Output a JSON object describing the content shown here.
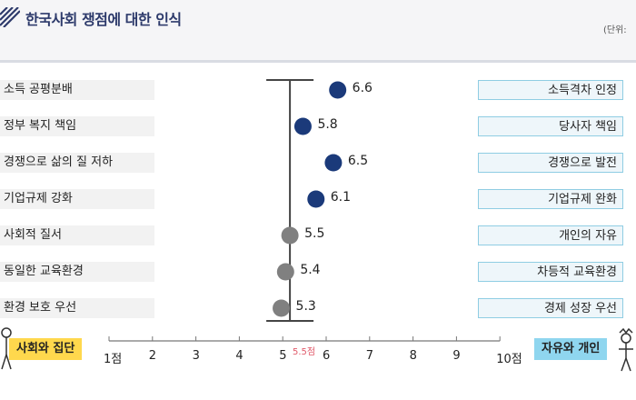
{
  "title": "한국사회 쟁점에 대한 인식",
  "unit": "(단위:",
  "chart_data": {
    "type": "scatter",
    "title": "한국사회 쟁점에 대한 인식",
    "xlim": [
      1,
      10
    ],
    "x_ticks": [
      1,
      2,
      3,
      4,
      5,
      6,
      7,
      8,
      9,
      10
    ],
    "x_tick_labels": [
      "1점",
      "2",
      "3",
      "4",
      "5",
      "6",
      "7",
      "8",
      "9",
      "10점"
    ],
    "reference": {
      "value": 5.5,
      "label": "5.5점"
    },
    "scale_ends": {
      "left": "사회와 집단",
      "right": "자유와 개인"
    },
    "items": [
      {
        "left": "소득 공평분배",
        "right": "소득격차 인정",
        "value": 6.6,
        "value_label": "6.6",
        "color": "#1b3a7a"
      },
      {
        "left": "정부 복지 책임",
        "right": "당사자 책임",
        "value": 5.8,
        "value_label": "5.8",
        "color": "#1b3a7a"
      },
      {
        "left": "경쟁으로 삶의 질 저하",
        "right": "경쟁으로 발전",
        "value": 6.5,
        "value_label": "6.5",
        "color": "#1b3a7a"
      },
      {
        "left": "기업규제 강화",
        "right": "기업규제 완화",
        "value": 6.1,
        "value_label": "6.1",
        "color": "#1b3a7a"
      },
      {
        "left": "사회적 질서",
        "right": "개인의 자유",
        "value": 5.5,
        "value_label": "5.5",
        "color": "#808080"
      },
      {
        "left": "동일한 교육환경",
        "right": "차등적 교육환경",
        "value": 5.4,
        "value_label": "5.4",
        "color": "#808080"
      },
      {
        "left": "환경 보호 우선",
        "right": "경제 성장 우선",
        "value": 5.3,
        "value_label": "5.3",
        "color": "#808080"
      }
    ]
  },
  "colors": {
    "title": "#2d3a6b",
    "left_label_bg": "#f2f2f2",
    "right_label_bg": "#eef6fa",
    "right_label_border": "#8fcde3",
    "left_pill": "#ffd84d",
    "right_pill": "#8fd6ef",
    "reference": "#e05a6a"
  },
  "icons": {
    "title": "stripe-logo-icon",
    "left_end": "group-people-icon",
    "right_end": "single-person-icon"
  }
}
